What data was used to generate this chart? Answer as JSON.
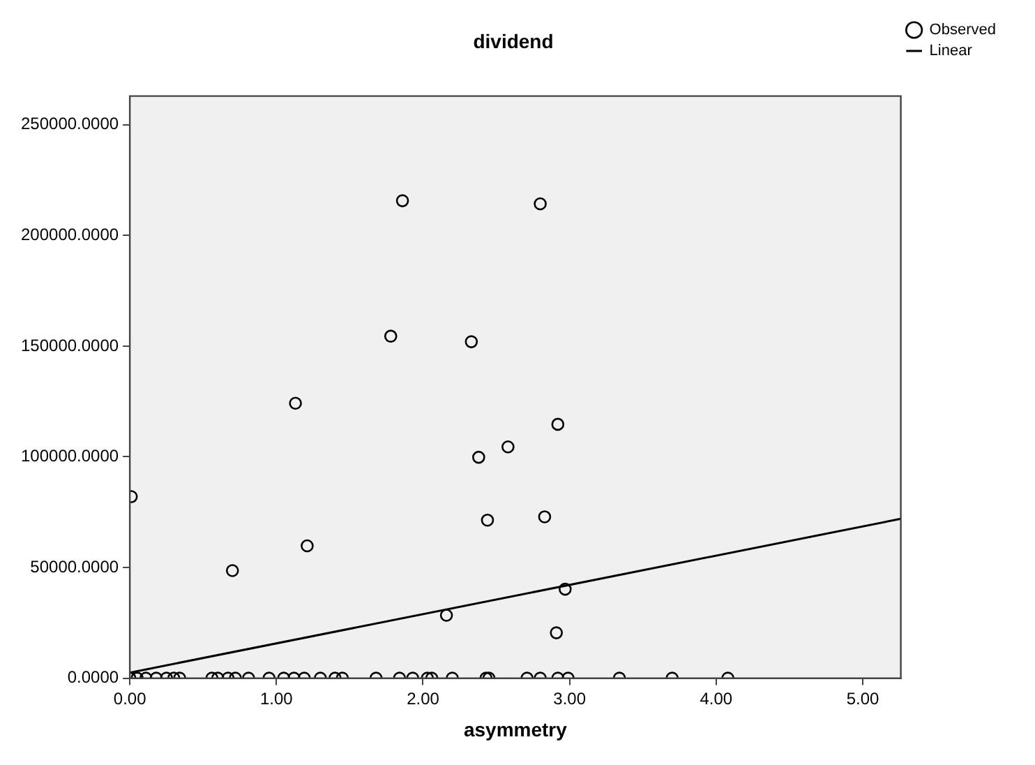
{
  "chart_data": {
    "type": "scatter",
    "title": "dividend",
    "xlabel": "asymmetry",
    "xlim": [
      0,
      5.26
    ],
    "xticks": [
      {
        "value": 0,
        "label": "0.00"
      },
      {
        "value": 1,
        "label": "1.00"
      },
      {
        "value": 2,
        "label": "2.00"
      },
      {
        "value": 3,
        "label": "3.00"
      },
      {
        "value": 4,
        "label": "4.00"
      },
      {
        "value": 5,
        "label": "5.00"
      }
    ],
    "ylim": [
      0,
      263000
    ],
    "yticks": [
      {
        "value": 0,
        "label": "0.0000"
      },
      {
        "value": 50000,
        "label": "50000.0000"
      },
      {
        "value": 100000,
        "label": "100000.0000"
      },
      {
        "value": 150000,
        "label": "150000.0000"
      },
      {
        "value": 200000,
        "label": "200000.0000"
      },
      {
        "value": 250000,
        "label": "250000.0000"
      }
    ],
    "grid": false,
    "legend": "top right",
    "marker": "circle",
    "series": [
      {
        "name": "Observed",
        "color": "#000000",
        "x": [
          1.86,
          2.8,
          1.78,
          2.33,
          1.13,
          2.92,
          2.58,
          2.38,
          0.01,
          2.83,
          2.44,
          1.21,
          0.7,
          2.97,
          2.16,
          2.91,
          0.0,
          0.05,
          0.11,
          0.18,
          0.25,
          0.3,
          0.34,
          0.56,
          0.6,
          0.67,
          0.72,
          0.81,
          0.95,
          1.05,
          1.12,
          1.19,
          1.3,
          1.4,
          1.45,
          1.68,
          1.84,
          1.93,
          2.03,
          2.06,
          2.2,
          2.43,
          2.45,
          2.71,
          2.8,
          2.92,
          2.99,
          3.34,
          3.7,
          4.08
        ],
        "values": [
          215700,
          214300,
          154500,
          152000,
          124200,
          114700,
          104500,
          99800,
          82000,
          72900,
          71400,
          59800,
          48600,
          40200,
          28400,
          20500,
          0,
          0,
          0,
          0,
          0,
          0,
          0,
          0,
          0,
          0,
          0,
          0,
          0,
          0,
          0,
          0,
          0,
          0,
          0,
          0,
          0,
          0,
          0,
          0,
          0,
          0,
          0,
          0,
          0,
          0,
          0,
          0,
          0,
          0
        ]
      },
      {
        "name": "Linear",
        "type": "line",
        "color": "#000000",
        "line_style": "solid",
        "marker": "none",
        "x": [
          0,
          5.26
        ],
        "values": [
          2500,
          72000
        ]
      }
    ]
  }
}
